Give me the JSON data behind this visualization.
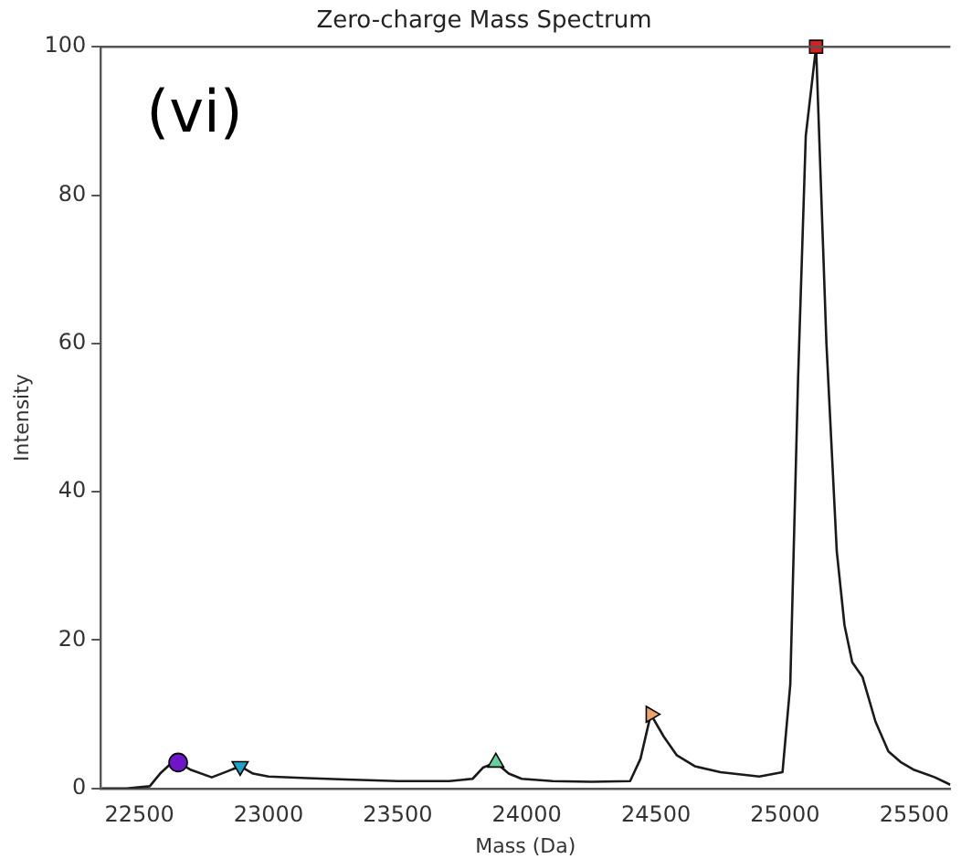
{
  "chart_data": {
    "type": "line",
    "title": "Zero-charge Mass Spectrum",
    "xlabel": "Mass (Da)",
    "ylabel": "Intensity",
    "annotations": [
      "(vi)"
    ],
    "xlim": [
      22350,
      25640
    ],
    "ylim": [
      0,
      100
    ],
    "xticks": [
      22500,
      23000,
      23500,
      24000,
      24500,
      25000,
      25500
    ],
    "yticks": [
      0,
      20,
      40,
      60,
      80,
      100
    ],
    "grid": false,
    "legend": false,
    "series": [
      {
        "color": "#1a1a1a",
        "marker": "none",
        "x": [
          22355,
          22450,
          22540,
          22580,
          22620,
          22650,
          22700,
          22780,
          22840,
          22890,
          22940,
          23000,
          23150,
          23300,
          23500,
          23700,
          23790,
          23830,
          23880,
          23930,
          23980,
          24100,
          24250,
          24400,
          24440,
          24480,
          24530,
          24580,
          24650,
          24750,
          24900,
          24990,
          25020,
          25050,
          25080,
          25120,
          25160,
          25200,
          25230,
          25260,
          25300,
          25350,
          25400,
          25450,
          25500,
          25580,
          25640
        ],
        "values": [
          0,
          0,
          0.3,
          2,
          3.3,
          3.5,
          2.5,
          1.5,
          2.3,
          3,
          2,
          1.6,
          1.4,
          1.2,
          1.0,
          1.0,
          1.3,
          2.8,
          3.5,
          2,
          1.3,
          1.0,
          0.9,
          1.0,
          4,
          10,
          7,
          4.5,
          3,
          2.2,
          1.6,
          2.2,
          14,
          55,
          88,
          100,
          60,
          32,
          22,
          17,
          15,
          9,
          5,
          3.5,
          2.5,
          1.5,
          0.5
        ]
      },
      {
        "type": "scatter",
        "color": "#7014c8",
        "marker": "circle",
        "x": [
          22650
        ],
        "values": [
          3.5
        ]
      },
      {
        "type": "scatter",
        "color": "#1fa3c4",
        "marker": "triangle-down",
        "x": [
          22890
        ],
        "values": [
          3
        ]
      },
      {
        "type": "scatter",
        "color": "#66d19a",
        "marker": "triangle",
        "x": [
          23880
        ],
        "values": [
          3.5
        ]
      },
      {
        "type": "scatter",
        "color": "#eba466",
        "marker": "triangle-right",
        "x": [
          24480
        ],
        "values": [
          10
        ]
      },
      {
        "type": "scatter",
        "color": "#d62020",
        "marker": "square",
        "x": [
          25120
        ],
        "values": [
          100
        ]
      }
    ]
  }
}
